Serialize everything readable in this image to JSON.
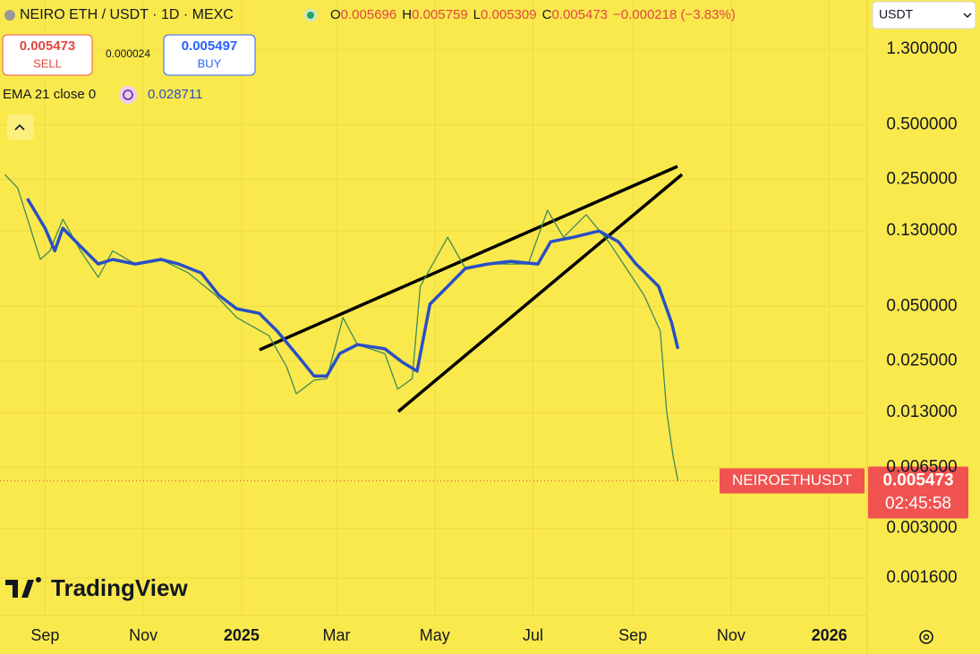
{
  "toolbar": {
    "symbol": "NEIRO ETH / USDT · 1D · MEXC",
    "ohlc": [
      {
        "label": "O",
        "value": "0.005696"
      },
      {
        "label": "H",
        "value": "0.005759"
      },
      {
        "label": "L",
        "value": "0.005309"
      },
      {
        "label": "C",
        "value": "0.005473"
      }
    ],
    "change": "−0.000218 (−3.83%)",
    "currency": "USDT"
  },
  "trade": {
    "sell_price": "0.005473",
    "sell_label": "SELL",
    "spread": "0.000024",
    "buy_price": "0.005497",
    "buy_label": "BUY"
  },
  "indicator": {
    "value": "0.028711"
  },
  "watermark": "TradingView",
  "chart_data": {
    "type": "line",
    "log_scale": true,
    "grid": true,
    "xlim": [
      "2024-08-04",
      "2026-01-24"
    ],
    "xticks": [
      {
        "value": "2024-09-01",
        "label": "Sep"
      },
      {
        "value": "2024-11-01",
        "label": "Nov"
      },
      {
        "value": "2025-01-01",
        "label": "2025"
      },
      {
        "value": "2025-03-01",
        "label": "Mar"
      },
      {
        "value": "2025-05-01",
        "label": "May"
      },
      {
        "value": "2025-07-01",
        "label": "Jul"
      },
      {
        "value": "2025-09-01",
        "label": "Sep"
      },
      {
        "value": "2025-11-01",
        "label": "Nov"
      },
      {
        "value": "2026-01-01",
        "label": "2026"
      }
    ],
    "ylim": [
      0.000993,
      2.43
    ],
    "yticks": [
      {
        "value": 1.3,
        "label": "1.300000"
      },
      {
        "value": 0.5,
        "label": "0.500000"
      },
      {
        "value": 0.25,
        "label": "0.250000"
      },
      {
        "value": 0.13,
        "label": "0.130000"
      },
      {
        "value": 0.05,
        "label": "0.050000"
      },
      {
        "value": 0.025,
        "label": "0.025000"
      },
      {
        "value": 0.013,
        "label": "0.013000"
      },
      {
        "value": 0.0065,
        "label": "0.006500"
      },
      {
        "value": 0.003,
        "label": "0.003000"
      },
      {
        "value": 0.0016,
        "label": "0.001600"
      }
    ],
    "series": [
      {
        "name": "NEIROETHUSDT",
        "color": "#3f8a5a",
        "x": [
          "2024-08-07",
          "2024-08-15",
          "2024-08-29",
          "2024-09-04",
          "2024-09-12",
          "2024-09-23",
          "2024-10-04",
          "2024-10-13",
          "2024-10-27",
          "2024-11-12",
          "2024-11-29",
          "2024-12-16",
          "2024-12-29",
          "2025-01-18",
          "2025-01-29",
          "2025-02-04",
          "2025-02-15",
          "2025-02-23",
          "2025-03-05",
          "2025-03-14",
          "2025-03-31",
          "2025-04-08",
          "2025-04-17",
          "2025-04-22",
          "2025-05-09",
          "2025-05-20",
          "2025-06-06",
          "2025-06-28",
          "2025-07-10",
          "2025-07-20",
          "2025-08-03",
          "2025-08-17",
          "2025-08-28",
          "2025-09-08",
          "2025-09-18",
          "2025-09-22",
          "2025-09-26",
          "2025-09-29"
        ],
        "values": [
          0.266,
          0.224,
          0.0906,
          0.101,
          0.151,
          0.101,
          0.0722,
          0.101,
          0.0855,
          0.0906,
          0.0764,
          0.0575,
          0.0434,
          0.0345,
          0.0232,
          0.0165,
          0.0196,
          0.02,
          0.0434,
          0.0308,
          0.0275,
          0.0175,
          0.02,
          0.0644,
          0.12,
          0.0809,
          0.0855,
          0.0855,
          0.169,
          0.12,
          0.16,
          0.1135,
          0.0809,
          0.0575,
          0.0366,
          0.0132,
          0.00748,
          0.005473
        ]
      },
      {
        "name": "EMA 21 close 0",
        "color": "#2a4fc4",
        "x": [
          "2024-08-21",
          "2024-09-01",
          "2024-09-07",
          "2024-09-12",
          "2024-09-23",
          "2024-10-04",
          "2024-10-13",
          "2024-10-27",
          "2024-11-12",
          "2024-11-23",
          "2024-12-07",
          "2024-12-18",
          "2024-12-29",
          "2025-01-12",
          "2025-01-23",
          "2025-02-06",
          "2025-02-15",
          "2025-02-23",
          "2025-03-03",
          "2025-03-14",
          "2025-03-31",
          "2025-04-11",
          "2025-04-20",
          "2025-04-28",
          "2025-05-09",
          "2025-05-20",
          "2025-06-03",
          "2025-06-17",
          "2025-07-04",
          "2025-07-12",
          "2025-07-26",
          "2025-08-11",
          "2025-08-23",
          "2025-09-03",
          "2025-09-17",
          "2025-09-25",
          "2025-09-29"
        ],
        "values": [
          0.196,
          0.1346,
          0.101,
          0.1346,
          0.107,
          0.0855,
          0.0906,
          0.0855,
          0.0906,
          0.0855,
          0.0764,
          0.0575,
          0.0485,
          0.0458,
          0.0366,
          0.026,
          0.0207,
          0.0207,
          0.0275,
          0.0308,
          0.0292,
          0.0246,
          0.022,
          0.0514,
          0.0644,
          0.0809,
          0.0855,
          0.0885,
          0.0855,
          0.1135,
          0.12,
          0.13,
          0.1135,
          0.0855,
          0.0644,
          0.0409,
          0.0292
        ]
      }
    ],
    "last_price": {
      "value": 0.005473,
      "countdown": "02:45:58"
    }
  }
}
